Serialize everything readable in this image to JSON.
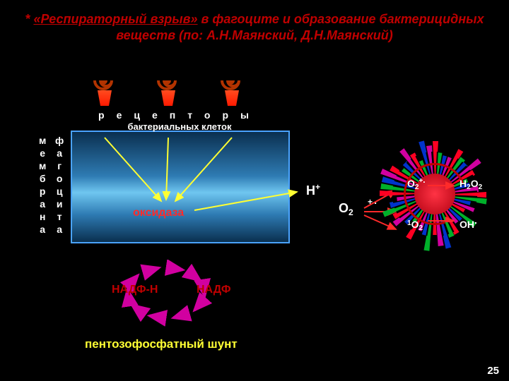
{
  "title": {
    "prefix": "* ",
    "underlined": "«Респираторный взрыв»",
    "rest": " в фагоците и образование бактерицидных веществ (по: А.Н.Маянский, Д.Н.Маянский)",
    "color": "#c00000"
  },
  "vlabels": {
    "left1": [
      "м",
      "е",
      "м",
      "б",
      "р",
      "а",
      "н",
      "а"
    ],
    "left2": [
      "ф",
      "а",
      "г",
      "о",
      "ц",
      "и",
      "т",
      "а"
    ]
  },
  "receptor": {
    "letters": "рецепторы",
    "sub": "бактериальных клеток"
  },
  "membrane": {
    "border_color": "#4aa3ff",
    "grad": [
      "#0a2f4f",
      "#2e7bb3",
      "#6fc6f0",
      "#2e7bb3",
      "#0a2f4f"
    ]
  },
  "labels": {
    "oxidase": "оксидаза",
    "hplus": "H",
    "hplus_sup": "+",
    "o2": "О",
    "o2_sub": "2",
    "nadph": "НАДФ-Н",
    "nadp": "НАДФ",
    "shunt": "пентозофосфатный шунт"
  },
  "chem_products": {
    "o2minus": {
      "pre": "О",
      "sub": "2",
      "sup": "+",
      "post": ""
    },
    "h2o2": {
      "text": "H",
      "sub1": "2",
      "mid": "O",
      "sub2": "2"
    },
    "singletO2": {
      "pre": "1",
      "mid": "O",
      "sub": "2"
    },
    "ohdot": {
      "text": "OH",
      "sup": "."
    }
  },
  "colors": {
    "red": "#ff2a2a",
    "darkred": "#c00000",
    "white": "#ffffff",
    "yellow": "#ffff33",
    "burst_red": "#ff0022",
    "burst_green": "#00b02a",
    "burst_blue": "#0033cc",
    "burst_pink": "#d100a0",
    "spiral": "#b23300"
  },
  "page": "25"
}
